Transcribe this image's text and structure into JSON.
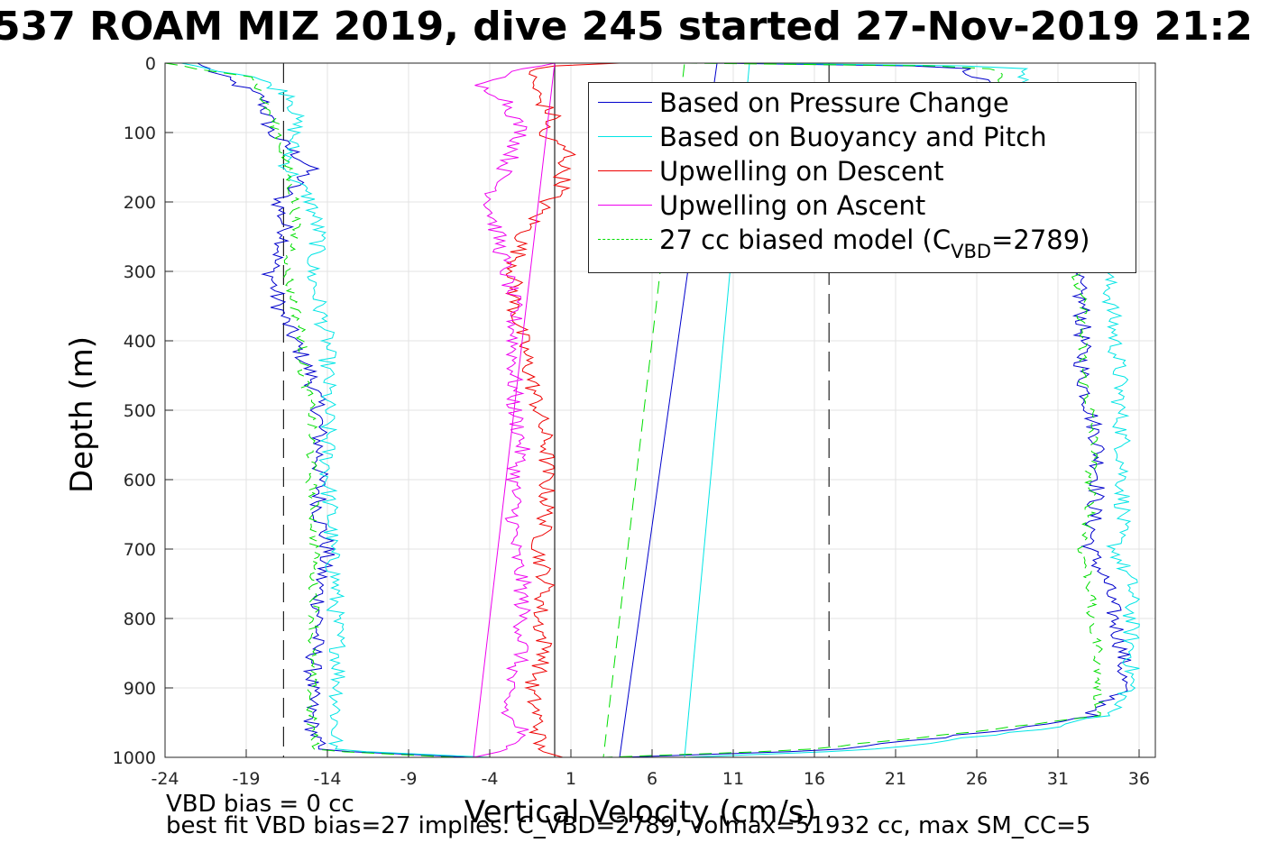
{
  "title": "537 ROAM MIZ 2019, dive 245 started 27-Nov-2019 21:2",
  "notes": {
    "vbd_bias": "VBD bias = 0 cc",
    "best_fit": "best fit VBD bias=27 implies: C_VBD=2789, volmax=51932 cc, max SM_CC=5"
  },
  "chart_data": {
    "type": "line",
    "title": "537 ROAM MIZ 2019, dive 245 started 27-Nov-2019 21:2",
    "xlabel": "Vertical Velocity (cm/s)",
    "ylabel": "Depth (m)",
    "xlim": [
      -24,
      37
    ],
    "ylim": [
      0,
      1000
    ],
    "y_reversed": true,
    "grid": true,
    "xticks": [
      "-24",
      "-19",
      "-14",
      "-9",
      "-4",
      "1",
      "6",
      "11",
      "16",
      "21",
      "26",
      "31",
      "36"
    ],
    "yticks": [
      "0",
      "100",
      "200",
      "300",
      "400",
      "500",
      "600",
      "700",
      "800",
      "900",
      "1000"
    ],
    "legend_position": "top-right",
    "reference_lines": [
      {
        "x": -16.7,
        "style": "dashed-black"
      },
      {
        "x": 16.9,
        "style": "dashed-black"
      },
      {
        "x": 0,
        "style": "solid-black"
      }
    ],
    "series": [
      {
        "name": "Based on Pressure Change",
        "color": "#0000cc",
        "style": "solid",
        "descent": {
          "depth": [
            0,
            20,
            50,
            100,
            150,
            200,
            250,
            300,
            350,
            400,
            450,
            500,
            550,
            600,
            650,
            700,
            750,
            800,
            850,
            900,
            950,
            990,
            1000
          ],
          "velocity": [
            -22,
            -20.5,
            -18,
            -17.5,
            -15,
            -17,
            -16.5,
            -17.5,
            -17,
            -16,
            -15,
            -14.5,
            -14.5,
            -14.5,
            -14.5,
            -14,
            -14.5,
            -14.5,
            -14.8,
            -15,
            -15,
            -14.5,
            -5
          ]
        },
        "ascent": {
          "depth": [
            1000,
            990,
            960,
            940,
            900,
            850,
            800,
            750,
            700,
            650,
            600,
            550,
            500,
            450,
            400,
            350,
            300,
            250,
            200,
            150,
            100,
            50,
            20,
            5,
            0
          ],
          "velocity": [
            4,
            17,
            28,
            33,
            35,
            35,
            34.5,
            34,
            33,
            33.2,
            33.5,
            33.5,
            33,
            32.5,
            32.5,
            32.5,
            32,
            31.5,
            31,
            30,
            29,
            28,
            26,
            25,
            10
          ]
        }
      },
      {
        "name": "Based on Buoyancy and Pitch",
        "color": "#00e5e5",
        "style": "solid",
        "descent": {
          "depth": [
            0,
            20,
            50,
            100,
            150,
            200,
            250,
            300,
            350,
            400,
            450,
            500,
            550,
            600,
            650,
            700,
            750,
            800,
            850,
            900,
            950,
            990,
            1000
          ],
          "velocity": [
            -23,
            -18.5,
            -16,
            -16,
            -16.5,
            -15,
            -14.5,
            -15,
            -14.5,
            -14,
            -14,
            -14,
            -14,
            -14,
            -13.8,
            -13.8,
            -13.5,
            -13.5,
            -13.3,
            -13.3,
            -13.5,
            -13.5,
            -4
          ]
        },
        "ascent": {
          "depth": [
            1000,
            990,
            960,
            940,
            900,
            850,
            800,
            750,
            700,
            650,
            600,
            550,
            500,
            450,
            400,
            350,
            300,
            250,
            200,
            150,
            100,
            50,
            20,
            5,
            0
          ],
          "velocity": [
            8,
            19,
            30,
            34,
            35.5,
            35.5,
            35.5,
            35.5,
            34.5,
            35,
            35,
            35,
            34.8,
            34.8,
            34.5,
            34.3,
            34,
            33.5,
            33,
            32,
            31,
            30,
            29,
            28.5,
            12
          ]
        }
      },
      {
        "name": "Upwelling on Descent",
        "color": "#ee0000",
        "style": "solid",
        "descent": {
          "depth": [
            0,
            5,
            20,
            50,
            80,
            100,
            130,
            150,
            180,
            200,
            250,
            300,
            350,
            400,
            450,
            500,
            550,
            600,
            650,
            700,
            750,
            800,
            850,
            900,
            950,
            990,
            1000
          ],
          "velocity": [
            4,
            -1,
            -1.5,
            -1,
            0,
            -1,
            1,
            0.5,
            0.5,
            -0.5,
            -2,
            -2.5,
            -2.5,
            -2,
            -1.5,
            -1,
            -0.5,
            -0.5,
            -0.5,
            -1,
            -0.5,
            -1,
            -0.5,
            -1.5,
            -1,
            -1,
            0.5
          ]
        }
      },
      {
        "name": "Upwelling on Ascent",
        "color": "#ee00ee",
        "style": "solid",
        "ascent": {
          "depth": [
            1000,
            990,
            960,
            940,
            900,
            850,
            800,
            750,
            700,
            650,
            600,
            550,
            500,
            450,
            400,
            350,
            300,
            250,
            200,
            150,
            100,
            50,
            30,
            10,
            0
          ],
          "velocity": [
            -5,
            -3,
            -2,
            -3,
            -3,
            -2,
            -2,
            -2,
            -2.5,
            -2.5,
            -2.5,
            -2,
            -2.5,
            -2.5,
            -2.5,
            -2.5,
            -3,
            -3.5,
            -4,
            -3,
            -2,
            -3,
            -5,
            -2,
            0
          ]
        }
      },
      {
        "name": "27 cc biased model",
        "name_parts": {
          "prefix": "27 cc biased model (C",
          "subscript": "VBD",
          "suffix": "=2789)"
        },
        "color": "#00dd00",
        "style": "dashed",
        "descent": {
          "depth": [
            0,
            20,
            50,
            100,
            150,
            200,
            250,
            300,
            350,
            400,
            450,
            500,
            550,
            600,
            650,
            700,
            750,
            800,
            850,
            900,
            950,
            990,
            1000
          ],
          "velocity": [
            -24,
            -18.5,
            -18,
            -17,
            -16.5,
            -16,
            -16,
            -16.5,
            -16,
            -15.5,
            -15.5,
            -15,
            -15,
            -15,
            -14.8,
            -14.8,
            -14.8,
            -14.8,
            -15,
            -15,
            -15,
            -14.8,
            -6
          ]
        },
        "ascent": {
          "depth": [
            1000,
            990,
            960,
            940,
            900,
            850,
            800,
            750,
            700,
            650,
            600,
            550,
            500,
            450,
            400,
            350,
            300,
            250,
            200,
            150,
            100,
            50,
            20,
            5,
            0
          ],
          "velocity": [
            3,
            15,
            27,
            33.5,
            33.5,
            33.5,
            33,
            33,
            32.5,
            33,
            33,
            33.2,
            33,
            32.5,
            32.5,
            32.5,
            32,
            31.5,
            31,
            30,
            29,
            28,
            27.5,
            27,
            8
          ]
        }
      }
    ]
  }
}
